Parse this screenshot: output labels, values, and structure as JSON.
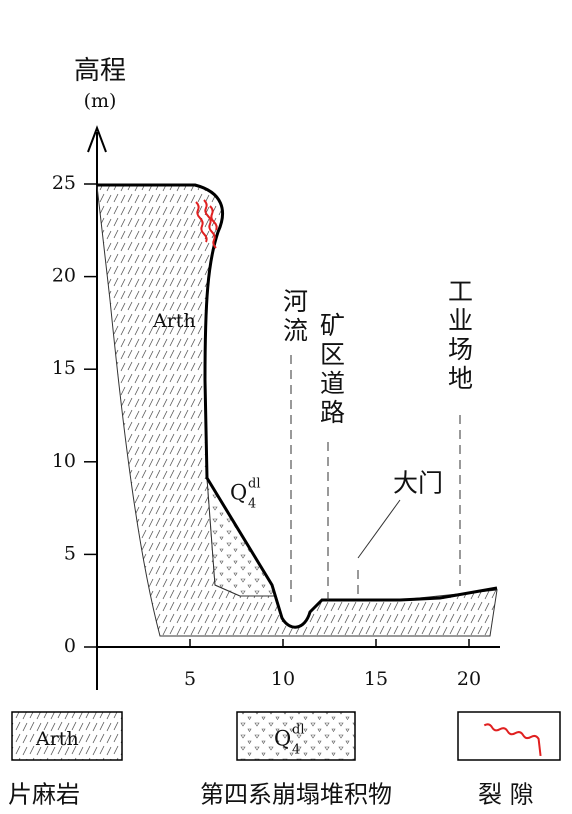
{
  "axis": {
    "y_title": "高程",
    "y_unit": "(m)",
    "yticks": [
      0,
      5,
      10,
      15,
      20,
      25
    ],
    "xticks": [
      5,
      10,
      15,
      20
    ]
  },
  "labels": {
    "rock": "Arth",
    "deposit": {
      "base": "Q",
      "sub": "4",
      "sup": "dl"
    },
    "river": "河流",
    "road": "矿区道路",
    "site": "工业场地",
    "gate": "大门"
  },
  "legend": [
    {
      "label": "片麻岩",
      "sample": "Arth"
    },
    {
      "label": "第四系崩塌堆积物",
      "sample": {
        "base": "Q",
        "sub": "4",
        "sup": "dl"
      }
    },
    {
      "label": "裂 隙"
    }
  ]
}
